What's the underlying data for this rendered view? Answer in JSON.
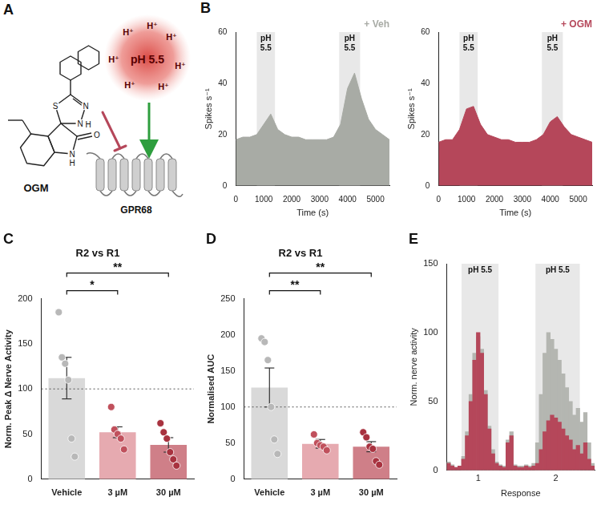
{
  "diagram": {
    "panel": "A",
    "molecule": "OGM",
    "atoms": [
      "S",
      "N",
      "N",
      "H",
      "N",
      "H",
      "O"
    ],
    "stimulus": "pH 5.5",
    "ions": [
      "H⁺",
      "H⁺",
      "H⁺",
      "H⁺",
      "H⁺",
      "H⁺",
      "H⁺"
    ],
    "receptor": "GPR68"
  },
  "chart_data": [
    {
      "panel": "B",
      "type": "area",
      "legend": "top right",
      "xlabel": "Time (s)",
      "ylabel": "Spikes s⁻¹",
      "x": [
        0,
        250,
        500,
        750,
        1000,
        1250,
        1500,
        1750,
        2000,
        2250,
        2500,
        2750,
        3000,
        3250,
        3500,
        3750,
        4000,
        4250,
        4500,
        4750,
        5000,
        5250,
        5500
      ],
      "series": [
        {
          "name": "+ Veh",
          "color": "#a8aba5",
          "values": [
            18,
            19,
            19,
            20,
            24,
            28,
            22,
            20,
            19,
            19,
            18,
            18,
            18,
            18,
            19,
            24,
            38,
            44,
            34,
            26,
            22,
            20,
            18
          ]
        }
      ],
      "xlim": [
        0,
        5500
      ],
      "xticks": [
        0,
        1000,
        2000,
        3000,
        4000,
        5000
      ],
      "ylim": [
        0,
        60
      ],
      "yticks": [
        0,
        20,
        40,
        60
      ],
      "bands": [
        {
          "from": 750,
          "to": 1400,
          "label": "pH 5.5"
        },
        {
          "from": 3700,
          "to": 4450,
          "label": "pH 5.5"
        }
      ]
    },
    {
      "type": "area",
      "legend": "top right",
      "xlabel": "Time (s)",
      "ylabel": "Spikes s⁻¹",
      "x": [
        0,
        250,
        500,
        750,
        1000,
        1250,
        1500,
        1750,
        2000,
        2250,
        2500,
        2750,
        3000,
        3250,
        3500,
        3750,
        4000,
        4250,
        4500,
        4750,
        5000,
        5250,
        5500
      ],
      "series": [
        {
          "name": "+ OGM",
          "color": "#b5475a",
          "values": [
            17,
            18,
            18,
            22,
            30,
            31,
            24,
            20,
            19,
            18,
            18,
            17,
            17,
            17,
            18,
            20,
            25,
            27,
            23,
            20,
            19,
            18,
            17
          ]
        }
      ],
      "xlim": [
        0,
        5500
      ],
      "xticks": [
        0,
        1000,
        2000,
        3000,
        4000,
        5000
      ],
      "ylim": [
        0,
        60
      ],
      "yticks": [
        0,
        20,
        40,
        60
      ],
      "bands": [
        {
          "from": 750,
          "to": 1400,
          "label": "pH 5.5"
        },
        {
          "from": 3700,
          "to": 4450,
          "label": "pH 5.5"
        }
      ]
    },
    {
      "panel": "C",
      "type": "bar",
      "title": "R2 vs R1",
      "ylabel": "Norm. Peak Δ Nerve Activity",
      "categories": [
        "Vehicle",
        "3 µM",
        "30 µM"
      ],
      "values": [
        112,
        52,
        38
      ],
      "errors": [
        23,
        6,
        8
      ],
      "points": [
        [
          185,
          135,
          128,
          110,
          45,
          25
        ],
        [
          80,
          55,
          50,
          45,
          33
        ],
        [
          62,
          52,
          45,
          30,
          22,
          15
        ]
      ],
      "colors": [
        "#d9d9d9",
        "#e6aab0",
        "#cf7f88"
      ],
      "reference_line": 100,
      "ylim": [
        0,
        200
      ],
      "yticks": [
        0,
        50,
        100,
        150,
        200
      ],
      "significance": [
        {
          "from": "Vehicle",
          "to": "3 µM",
          "label": "*"
        },
        {
          "from": "Vehicle",
          "to": "30 µM",
          "label": "**"
        }
      ]
    },
    {
      "panel": "D",
      "type": "bar",
      "title": "R2 vs R1",
      "ylabel": "Normalised AUC",
      "categories": [
        "Vehicle",
        "3 µM",
        "30 µM"
      ],
      "values": [
        127,
        49,
        45
      ],
      "errors": [
        27,
        6,
        7
      ],
      "points": [
        [
          195,
          190,
          165,
          100,
          55,
          35
        ],
        [
          62,
          50,
          47,
          45,
          40
        ],
        [
          65,
          58,
          45,
          42,
          25,
          20
        ]
      ],
      "colors": [
        "#d9d9d9",
        "#e6aab0",
        "#cf7f88"
      ],
      "reference_line": 100,
      "ylim": [
        0,
        250
      ],
      "yticks": [
        0,
        50,
        100,
        150,
        200,
        250
      ],
      "significance": [
        {
          "from": "Vehicle",
          "to": "3 µM",
          "label": "**"
        },
        {
          "from": "Vehicle",
          "to": "30 µM",
          "label": "**"
        }
      ]
    },
    {
      "panel": "E",
      "type": "bar",
      "xlabel": "Response",
      "ylabel": "Norm. nerve activity",
      "categories": [
        null,
        null,
        null,
        null,
        null,
        null,
        null,
        null,
        "1",
        null,
        null,
        null,
        null,
        null,
        null,
        null,
        null,
        null,
        null,
        null,
        null,
        null,
        null,
        null,
        null,
        null,
        null,
        null,
        null,
        "2",
        null,
        null,
        null,
        null,
        null,
        null,
        null,
        null,
        null,
        null
      ],
      "series": [
        {
          "color": "#b5475a",
          "values": [
            5,
            3,
            2,
            3,
            8,
            25,
            50,
            80,
            100,
            85,
            55,
            30,
            12,
            5,
            3,
            2,
            20,
            25,
            3,
            2,
            2,
            3,
            2,
            3,
            5,
            15,
            28,
            36,
            40,
            38,
            35,
            30,
            25,
            22,
            15,
            18,
            12,
            20,
            8,
            3
          ]
        },
        {
          "color": "#b4b6b1",
          "values": [
            6,
            4,
            2,
            3,
            10,
            28,
            55,
            85,
            97,
            88,
            58,
            32,
            15,
            6,
            4,
            3,
            22,
            28,
            4,
            3,
            3,
            4,
            3,
            5,
            20,
            55,
            85,
            100,
            95,
            88,
            80,
            70,
            60,
            50,
            40,
            45,
            35,
            42,
            20,
            5
          ]
        }
      ],
      "ylim": [
        0,
        150
      ],
      "yticks": [
        0,
        50,
        100,
        150
      ],
      "bands": [
        {
          "from": 4,
          "to": 13,
          "label": "pH 5.5"
        },
        {
          "from": 24,
          "to": 35,
          "label": "pH 5.5"
        }
      ]
    }
  ]
}
